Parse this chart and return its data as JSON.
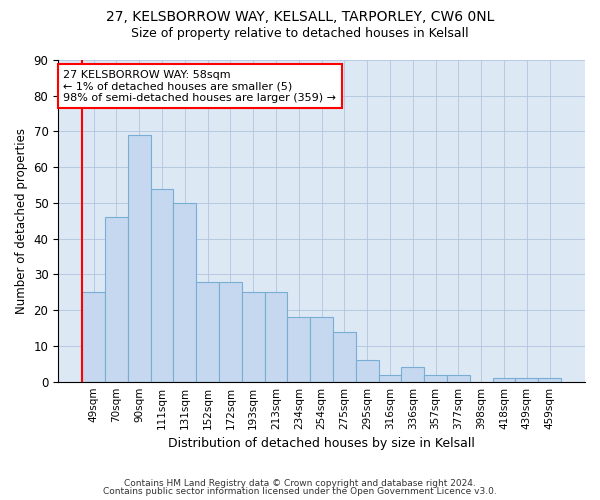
{
  "title_line1": "27, KELSBORROW WAY, KELSALL, TARPORLEY, CW6 0NL",
  "title_line2": "Size of property relative to detached houses in Kelsall",
  "xlabel": "Distribution of detached houses by size in Kelsall",
  "ylabel": "Number of detached properties",
  "categories": [
    "49sqm",
    "70sqm",
    "90sqm",
    "111sqm",
    "131sqm",
    "152sqm",
    "172sqm",
    "193sqm",
    "213sqm",
    "234sqm",
    "254sqm",
    "275sqm",
    "295sqm",
    "316sqm",
    "336sqm",
    "357sqm",
    "377sqm",
    "398sqm",
    "418sqm",
    "439sqm",
    "459sqm"
  ],
  "values": [
    25,
    46,
    69,
    54,
    50,
    28,
    28,
    25,
    25,
    18,
    18,
    14,
    6,
    2,
    4,
    2,
    2,
    0,
    1,
    1,
    1
  ],
  "bar_color": "#c5d8f0",
  "bar_edge_color": "#7aadd4",
  "ylim": [
    0,
    90
  ],
  "yticks": [
    0,
    10,
    20,
    30,
    40,
    50,
    60,
    70,
    80,
    90
  ],
  "annotation_box_text": "27 KELSBORROW WAY: 58sqm\n← 1% of detached houses are smaller (5)\n98% of semi-detached houses are larger (359) →",
  "annotation_box_color": "#cc0000",
  "footer_line1": "Contains HM Land Registry data © Crown copyright and database right 2024.",
  "footer_line2": "Contains public sector information licensed under the Open Government Licence v3.0.",
  "background_color": "#ffffff",
  "ax_background_color": "#dce9f5",
  "grid_color": "#b0c4de"
}
